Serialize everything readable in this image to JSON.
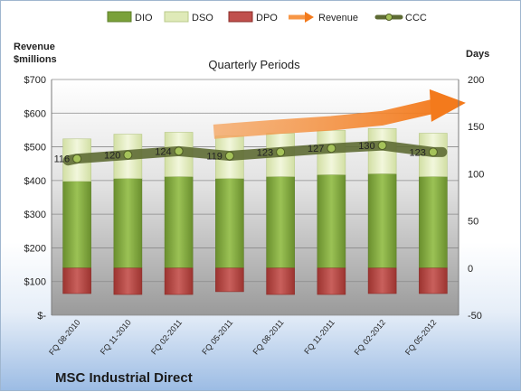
{
  "chart_data": {
    "type": "bar",
    "title": "Quarterly Periods",
    "company": "MSC Industrial Direct",
    "left_axis_title": "Revenue\n$millions",
    "right_axis_title": "Days",
    "left_axis": {
      "min": 0,
      "max": 700,
      "step": 100,
      "tick_labels": [
        "$-",
        "$100",
        "$200",
        "$300",
        "$400",
        "$500",
        "$600",
        "$700"
      ]
    },
    "right_axis": {
      "min": -50,
      "max": 200,
      "step": 50,
      "tick_labels": [
        "-50",
        "0",
        "50",
        "100",
        "150",
        "200"
      ]
    },
    "categories": [
      "FQ 08-2010",
      "FQ 11-2010",
      "FQ 02-2011",
      "FQ 05-2011",
      "FQ 08-2011",
      "FQ 11-2011",
      "FQ 02-2012",
      "FQ 05-2012"
    ],
    "legend": [
      "DIO",
      "DSO",
      "DPO",
      "Revenue",
      "CCC"
    ],
    "legend_position": "top",
    "series": [
      {
        "name": "DIO",
        "axis": "right",
        "color": "#7aa13a",
        "values": [
          92,
          95,
          97,
          95,
          97,
          99,
          100,
          97
        ]
      },
      {
        "name": "DSO",
        "axis": "right",
        "color": "#dfeab8",
        "values": [
          45,
          47,
          47,
          45,
          46,
          47,
          48,
          46
        ]
      },
      {
        "name": "DPO",
        "axis": "right",
        "color": "#c0504d",
        "values": [
          -27,
          -28,
          -28,
          -25,
          -28,
          -28,
          -27,
          -27
        ]
      },
      {
        "name": "Revenue",
        "axis": "left",
        "color": "#f79646",
        "values": [
          480,
          500,
          530,
          545,
          560,
          570,
          585,
          620
        ]
      },
      {
        "name": "CCC",
        "axis": "right",
        "color": "#6b7a3a",
        "values": [
          116,
          120,
          124,
          119,
          123,
          127,
          130,
          123
        ]
      }
    ],
    "ccc_labels": [
      "116",
      "120",
      "124",
      "119",
      "123",
      "127",
      "130",
      "123"
    ],
    "grid": true
  }
}
